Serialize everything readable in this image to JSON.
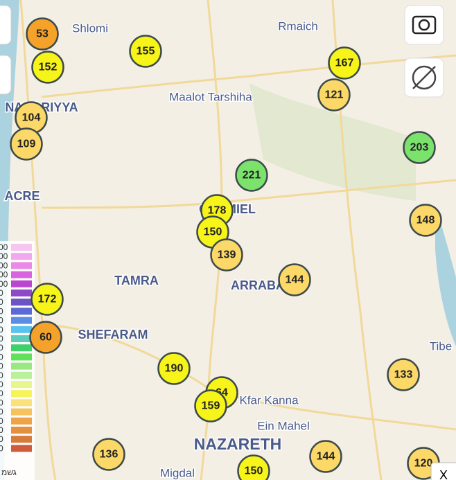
{
  "places": [
    "Shlomi",
    "Rmaich",
    "Maalot Tarshiha",
    "NAHARIYYA",
    "ACRE",
    "CARMIEL",
    "TAMRA",
    "ARRABA",
    "SHEFARAM",
    "Kfar Kanna",
    "Ein Mahel",
    "NAZARETH",
    "Migdal",
    "Tibe"
  ],
  "markers": [
    {
      "value": 53,
      "color": "#f5a22a"
    },
    {
      "value": 152,
      "color": "#f7f41a"
    },
    {
      "value": 155,
      "color": "#f7f41a"
    },
    {
      "value": 167,
      "color": "#f7f41a"
    },
    {
      "value": 121,
      "color": "#fbd867"
    },
    {
      "value": 104,
      "color": "#fbd867"
    },
    {
      "value": 109,
      "color": "#fbd867"
    },
    {
      "value": 203,
      "color": "#7be36b"
    },
    {
      "value": 221,
      "color": "#7be36b"
    },
    {
      "value": 178,
      "color": "#f7f41a"
    },
    {
      "value": 150,
      "color": "#f7f41a"
    },
    {
      "value": 148,
      "color": "#fbd867"
    },
    {
      "value": 139,
      "color": "#fbd867"
    },
    {
      "value": 144,
      "color": "#fbd867"
    },
    {
      "value": 172,
      "color": "#f7f41a"
    },
    {
      "value": 60,
      "color": "#f5a22a"
    },
    {
      "value": 190,
      "color": "#f7f41a"
    },
    {
      "value": 133,
      "color": "#fbd867"
    },
    {
      "value": 64,
      "color": "#f7f41a"
    },
    {
      "value": 159,
      "color": "#f7f41a"
    },
    {
      "value": 136,
      "color": "#fbd867"
    },
    {
      "value": 144,
      "color": "#fbd867"
    },
    {
      "value": 150,
      "color": "#f7f41a"
    },
    {
      "value": 120,
      "color": "#fbd867"
    }
  ],
  "legend": {
    "title": "גשמ",
    "items": [
      {
        "label": "00",
        "color": "#f6c6f1"
      },
      {
        "label": "00",
        "color": "#f0a9ee"
      },
      {
        "label": "00",
        "color": "#e98ae6"
      },
      {
        "label": "00",
        "color": "#d764dc"
      },
      {
        "label": "00",
        "color": "#b848d1"
      },
      {
        "label": "0",
        "color": "#8e49c9"
      },
      {
        "label": "0",
        "color": "#6b55c5"
      },
      {
        "label": "0",
        "color": "#5a6ad6"
      },
      {
        "label": "0",
        "color": "#5b8fe6"
      },
      {
        "label": "0",
        "color": "#57c3ee"
      },
      {
        "label": "0",
        "color": "#5dccb8"
      },
      {
        "label": "0",
        "color": "#3fd06b"
      },
      {
        "label": "0",
        "color": "#61e05a"
      },
      {
        "label": "0",
        "color": "#9ae883"
      },
      {
        "label": "0",
        "color": "#b9f09c"
      },
      {
        "label": "0",
        "color": "#e7f78e"
      },
      {
        "label": "0",
        "color": "#f7f458"
      },
      {
        "label": "0",
        "color": "#f9e27b"
      },
      {
        "label": "0",
        "color": "#f4c35f"
      },
      {
        "label": "0",
        "color": "#eea347"
      },
      {
        "label": "0",
        "color": "#e49043"
      },
      {
        "label": "0",
        "color": "#d77a3b"
      },
      {
        "label": "0",
        "color": "#cf5b3d"
      }
    ]
  },
  "close_button": "X"
}
